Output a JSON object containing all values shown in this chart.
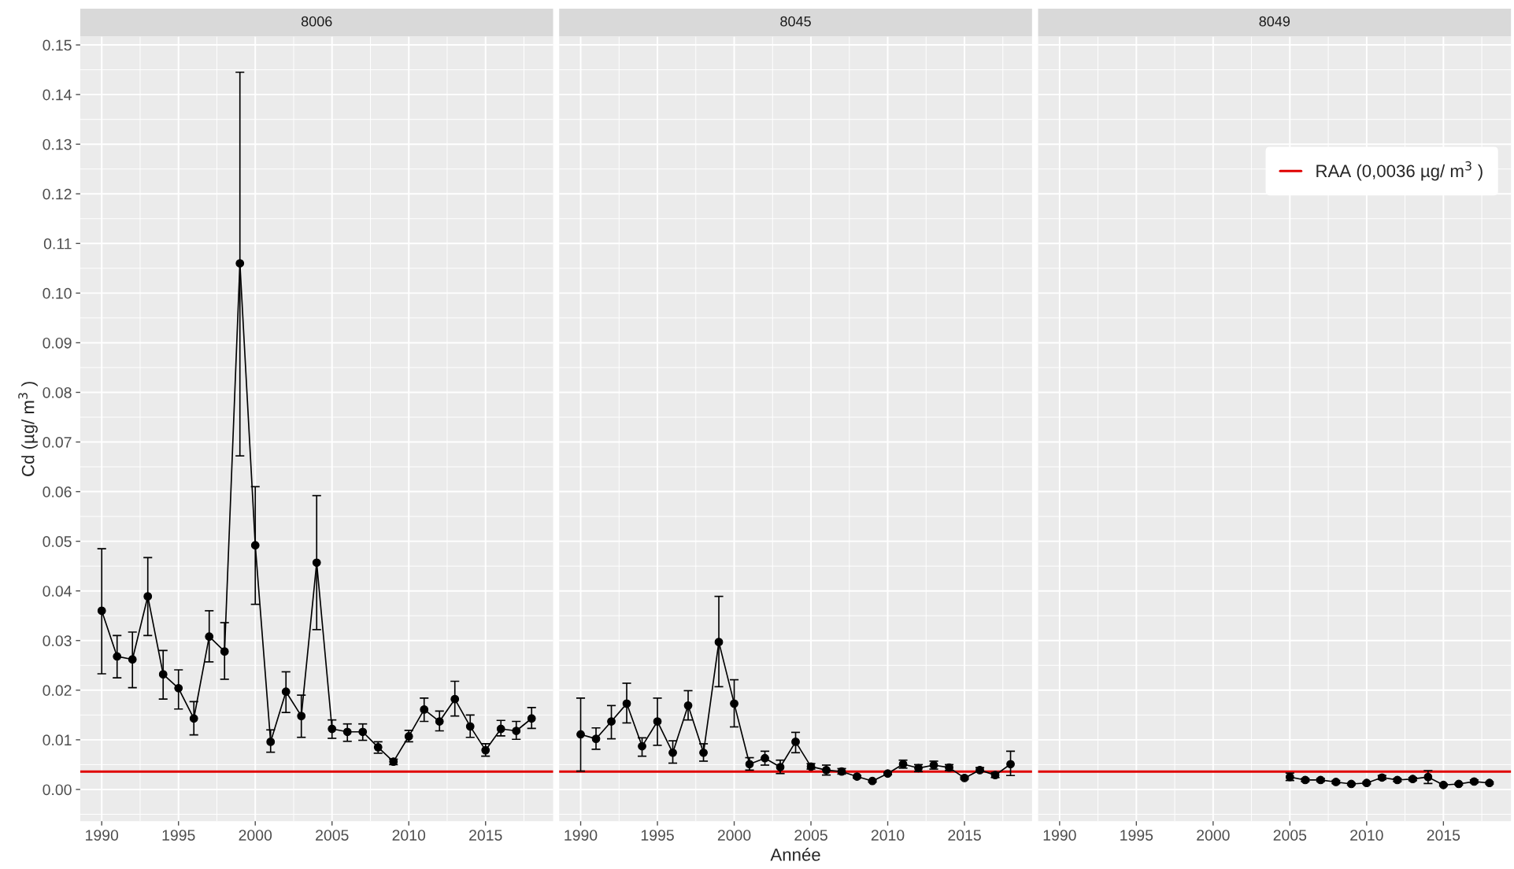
{
  "chart_data": [
    {
      "type": "line",
      "title": "8006",
      "ylabel": "Cd (µg/ m$^{3}$ )",
      "marker": "circle",
      "grid": true,
      "tick_labels": true,
      "xlim": [
        1988.6,
        2019.4
      ],
      "xticks": [
        1990,
        1995,
        2000,
        2005,
        2010,
        2015
      ],
      "ylim": [
        -0.0064,
        0.1517
      ],
      "yticks": [
        {
          "value": 0,
          "label": "0.00"
        },
        {
          "value": 0.01,
          "label": "0.01"
        },
        {
          "value": 0.02,
          "label": "0.02"
        },
        {
          "value": 0.03,
          "label": "0.03"
        },
        {
          "value": 0.04,
          "label": "0.04"
        },
        {
          "value": 0.05,
          "label": "0.05"
        },
        {
          "value": 0.06,
          "label": "0.06"
        },
        {
          "value": 0.07,
          "label": "0.07"
        },
        {
          "value": 0.08,
          "label": "0.08"
        },
        {
          "value": 0.09,
          "label": "0.09"
        },
        {
          "value": 0.1,
          "label": "0.10"
        },
        {
          "value": 0.11,
          "label": "0.11"
        },
        {
          "value": 0.12,
          "label": "0.12"
        },
        {
          "value": 0.13,
          "label": "0.13"
        },
        {
          "value": 0.14,
          "label": "0.14"
        },
        {
          "value": 0.15,
          "label": "0.15"
        }
      ],
      "ref_lines": [
        {
          "axis": "y",
          "value": 0.0036,
          "color": "#e00000"
        }
      ],
      "series": [
        {
          "color": "#000000",
          "x": [
            1990,
            1991,
            1992,
            1993,
            1994,
            1995,
            1996,
            1997,
            1998,
            1999,
            2000,
            2001,
            2002,
            2003,
            2004,
            2005,
            2006,
            2007,
            2008,
            2009,
            2010,
            2011,
            2012,
            2013,
            2014,
            2015,
            2016,
            2017,
            2018
          ],
          "values": [
            0.036,
            0.0268,
            0.0262,
            0.0389,
            0.0232,
            0.0204,
            0.0143,
            0.0308,
            0.0278,
            0.106,
            0.0492,
            0.0096,
            0.0197,
            0.0148,
            0.0457,
            0.0122,
            0.0116,
            0.0116,
            0.0085,
            0.0056,
            0.0107,
            0.0161,
            0.0137,
            0.0182,
            0.0127,
            0.0079,
            0.0122,
            0.0118,
            0.0143
          ],
          "errors": [
            [
              0.0233,
              0.0485
            ],
            [
              0.0225,
              0.031
            ],
            [
              0.0205,
              0.0317
            ],
            [
              0.031,
              0.0467
            ],
            [
              0.0182,
              0.028
            ],
            [
              0.0162,
              0.0241
            ],
            [
              0.011,
              0.0177
            ],
            [
              0.0257,
              0.036
            ],
            [
              0.0222,
              0.0336
            ],
            [
              0.0672,
              0.1445
            ],
            [
              0.0373,
              0.061
            ],
            [
              0.0075,
              0.012
            ],
            [
              0.0155,
              0.0237
            ],
            [
              0.0105,
              0.019
            ],
            [
              0.0322,
              0.0592
            ],
            [
              0.0103,
              0.014
            ],
            [
              0.0097,
              0.0132
            ],
            [
              0.0099,
              0.0132
            ],
            [
              0.0073,
              0.0096
            ],
            [
              0.005,
              0.0061
            ],
            [
              0.0096,
              0.0119
            ],
            [
              0.0137,
              0.0184
            ],
            [
              0.0118,
              0.0158
            ],
            [
              0.0148,
              0.0218
            ],
            [
              0.0105,
              0.015
            ],
            [
              0.0067,
              0.0092
            ],
            [
              0.0108,
              0.0139
            ],
            [
              0.0101,
              0.0137
            ],
            [
              0.0123,
              0.0165
            ]
          ]
        }
      ]
    },
    {
      "type": "line",
      "title": "8045",
      "xlabel": "Année",
      "marker": "circle",
      "grid": true,
      "tick_labels": "x",
      "xlim": [
        1988.6,
        2019.4
      ],
      "xticks": [
        1990,
        1995,
        2000,
        2005,
        2010,
        2015
      ],
      "ylim": [
        -0.0064,
        0.1517
      ],
      "yticks": [
        0,
        0.01,
        0.02,
        0.03,
        0.04,
        0.05,
        0.06,
        0.07,
        0.08,
        0.09,
        0.1,
        0.11,
        0.12,
        0.13,
        0.14,
        0.15
      ],
      "ref_lines": [
        {
          "axis": "y",
          "value": 0.0036,
          "color": "#e00000"
        }
      ],
      "series": [
        {
          "color": "#000000",
          "x": [
            1990,
            1991,
            1992,
            1993,
            1994,
            1995,
            1996,
            1997,
            1998,
            1999,
            2000,
            2001,
            2002,
            2003,
            2004,
            2005,
            2006,
            2007,
            2008,
            2009,
            2010,
            2011,
            2012,
            2013,
            2014,
            2015,
            2016,
            2017,
            2018
          ],
          "values": [
            0.0111,
            0.0102,
            0.0137,
            0.0173,
            0.0087,
            0.0137,
            0.0074,
            0.0169,
            0.0074,
            0.0297,
            0.0173,
            0.0051,
            0.0063,
            0.0045,
            0.0096,
            0.0046,
            0.0039,
            0.0036,
            0.0026,
            0.0017,
            0.0032,
            0.0051,
            0.0043,
            0.0049,
            0.0044,
            0.0023,
            0.0039,
            0.0029,
            0.0051
          ],
          "errors": [
            [
              0.0037,
              0.0184
            ],
            [
              0.0081,
              0.0124
            ],
            [
              0.0102,
              0.0169
            ],
            [
              0.0134,
              0.0214
            ],
            [
              0.0067,
              0.0104
            ],
            [
              0.0089,
              0.0184
            ],
            [
              0.0053,
              0.0098
            ],
            [
              0.014,
              0.0199
            ],
            [
              0.0057,
              0.0092
            ],
            [
              0.0207,
              0.0389
            ],
            [
              0.0126,
              0.0221
            ],
            [
              0.0039,
              0.0064
            ],
            [
              0.0049,
              0.0077
            ],
            [
              0.0032,
              0.0059
            ],
            [
              0.0074,
              0.0115
            ],
            [
              0.0041,
              0.0052
            ],
            [
              0.0029,
              0.0049
            ],
            [
              0.0031,
              0.0042
            ],
            [
              0.0023,
              0.0028
            ],
            [
              0.0015,
              0.0019
            ],
            [
              0.003,
              0.0034
            ],
            [
              0.0043,
              0.0059
            ],
            [
              0.0036,
              0.005
            ],
            [
              0.0041,
              0.0057
            ],
            [
              0.0038,
              0.005
            ],
            [
              0.0021,
              0.0025
            ],
            [
              0.0036,
              0.0044
            ],
            [
              0.0024,
              0.0034
            ],
            [
              0.0028,
              0.0077
            ]
          ]
        }
      ]
    },
    {
      "type": "line",
      "title": "8049",
      "marker": "circle",
      "grid": true,
      "tick_labels": "x",
      "legend": "top right",
      "xlim": [
        1988.6,
        2019.4
      ],
      "xticks": [
        1990,
        1995,
        2000,
        2005,
        2010,
        2015
      ],
      "ylim": [
        -0.0064,
        0.1517
      ],
      "yticks": [
        0,
        0.01,
        0.02,
        0.03,
        0.04,
        0.05,
        0.06,
        0.07,
        0.08,
        0.09,
        0.1,
        0.11,
        0.12,
        0.13,
        0.14,
        0.15
      ],
      "ref_lines": [
        {
          "axis": "y",
          "value": 0.0036,
          "color": "#e00000",
          "label": "RAA (0,0036 µg/ m$^{3}$ )"
        }
      ],
      "series": [
        {
          "color": "#000000",
          "x": [
            2005,
            2006,
            2007,
            2008,
            2009,
            2010,
            2011,
            2012,
            2013,
            2014,
            2015,
            2016,
            2017,
            2018
          ],
          "values": [
            0.0025,
            0.0019,
            0.0019,
            0.0015,
            0.0011,
            0.0013,
            0.0024,
            0.0019,
            0.0021,
            0.0025,
            0.0009,
            0.0011,
            0.0016,
            0.0013
          ],
          "errors": [
            [
              0.0018,
              0.0033
            ],
            [
              0.0016,
              0.0022
            ],
            [
              0.0016,
              0.0022
            ],
            [
              0.0012,
              0.0018
            ],
            [
              0.0009,
              0.0013
            ],
            [
              0.0011,
              0.0015
            ],
            [
              0.002,
              0.0028
            ],
            [
              0.0016,
              0.0022
            ],
            [
              0.0018,
              0.0024
            ],
            [
              0.0012,
              0.0038
            ],
            [
              0.0007,
              0.0011
            ],
            [
              0.0009,
              0.0013
            ],
            [
              0.0013,
              0.0019
            ],
            [
              0.0011,
              0.0015
            ]
          ]
        }
      ]
    }
  ]
}
